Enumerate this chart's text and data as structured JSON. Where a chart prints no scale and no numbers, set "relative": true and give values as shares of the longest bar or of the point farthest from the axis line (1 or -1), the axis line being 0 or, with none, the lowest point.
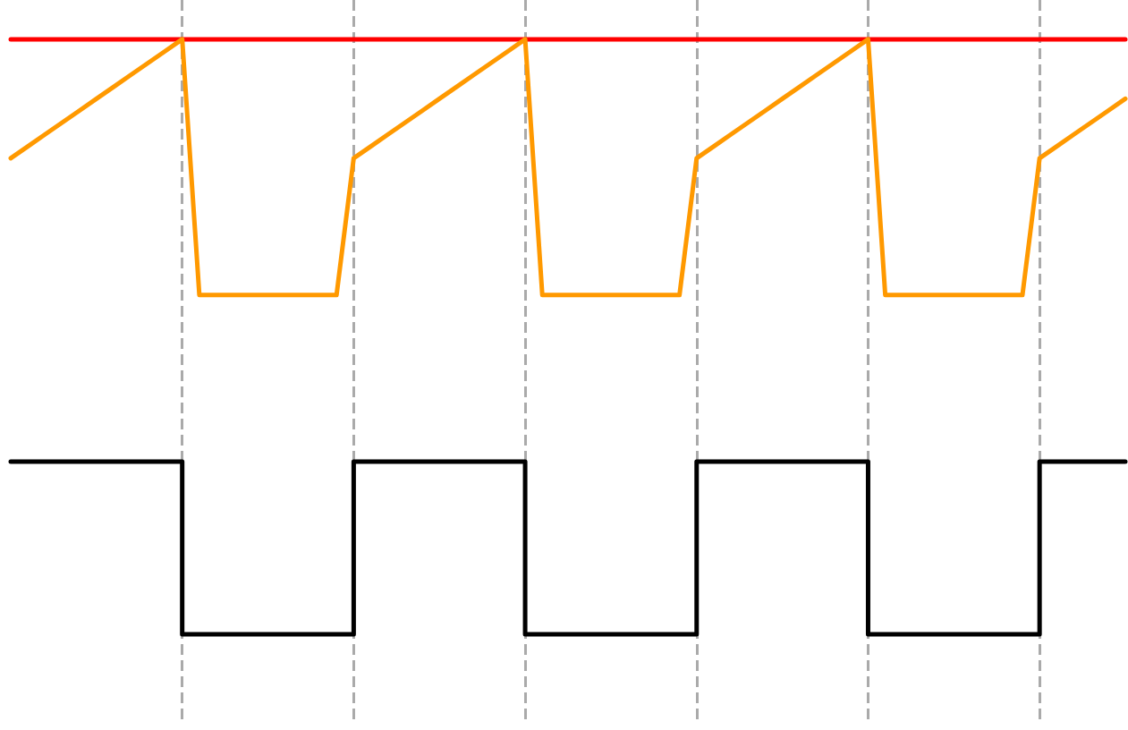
{
  "chart_data": {
    "type": "line",
    "relative": true,
    "grid": "x",
    "marker": "none",
    "line_style": "solid",
    "categories": [
      null,
      null,
      null,
      null,
      null,
      null,
      null,
      null,
      null,
      null,
      null,
      null,
      null,
      null,
      null,
      null,
      null,
      null,
      null,
      null,
      null,
      null,
      null,
      null,
      null,
      null,
      null,
      null,
      null,
      null,
      null,
      null,
      null,
      null,
      null,
      null,
      null,
      null,
      null,
      null,
      null,
      null,
      null,
      null,
      null,
      null,
      null,
      null,
      null,
      null,
      null,
      null,
      null,
      null,
      null,
      null,
      null,
      null,
      null,
      null,
      null,
      null,
      null,
      null,
      null,
      null
    ],
    "series": [
      {
        "color": "#ff0000",
        "values": [
          1,
          1,
          1,
          1,
          1,
          1,
          1,
          1,
          1,
          1,
          1,
          1,
          1,
          1,
          1,
          1,
          1,
          1,
          1,
          1,
          1,
          1,
          1,
          1,
          1,
          1,
          1,
          1,
          1,
          1,
          1,
          1,
          1,
          1,
          1,
          1,
          1,
          1,
          1,
          1,
          1,
          1,
          1,
          1,
          1,
          1,
          1,
          1,
          1,
          1,
          1,
          1,
          1,
          1,
          1,
          1,
          1,
          1,
          1,
          1,
          1,
          1,
          1,
          1,
          1,
          1
        ]
      },
      {
        "color": "#ff9900",
        "values": [
          0.8,
          0.82,
          0.84,
          0.86,
          0.88,
          0.9,
          0.92,
          0.94,
          0.96,
          0.98,
          1,
          0.57,
          0.57,
          0.57,
          0.57,
          0.57,
          0.57,
          0.57,
          0.57,
          0.57,
          0.8,
          0.82,
          0.84,
          0.86,
          0.88,
          0.9,
          0.92,
          0.94,
          0.96,
          0.98,
          1,
          0.57,
          0.57,
          0.57,
          0.57,
          0.57,
          0.57,
          0.57,
          0.57,
          0.57,
          0.8,
          0.82,
          0.84,
          0.86,
          0.88,
          0.9,
          0.92,
          0.94,
          0.96,
          0.98,
          1,
          0.57,
          0.57,
          0.57,
          0.57,
          0.57,
          0.57,
          0.57,
          0.57,
          0.57,
          0.8,
          0.82,
          0.84,
          0.86,
          0.88,
          0.9
        ]
      },
      {
        "type": "step",
        "color": "#000000",
        "values": [
          0.29,
          0.29,
          0.29,
          0.29,
          0.29,
          0.29,
          0.29,
          0.29,
          0.29,
          0.29,
          0,
          0,
          0,
          0,
          0,
          0,
          0,
          0,
          0,
          0,
          0.29,
          0.29,
          0.29,
          0.29,
          0.29,
          0.29,
          0.29,
          0.29,
          0.29,
          0.29,
          0,
          0,
          0,
          0,
          0,
          0,
          0,
          0,
          0,
          0,
          0.29,
          0.29,
          0.29,
          0.29,
          0.29,
          0.29,
          0.29,
          0.29,
          0.29,
          0.29,
          0,
          0,
          0,
          0,
          0,
          0,
          0,
          0,
          0,
          0,
          0.29,
          0.29,
          0.29,
          0.29,
          0.29,
          0.29
        ]
      }
    ]
  }
}
